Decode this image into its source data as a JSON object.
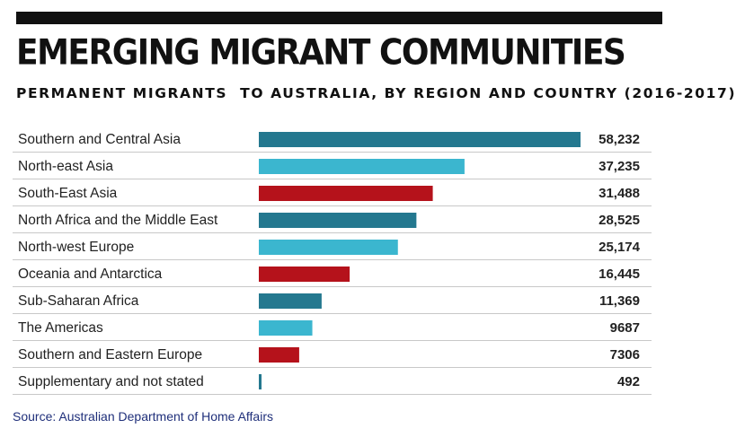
{
  "header": {
    "title": "EMERGING MIGRANT COMMUNITIES",
    "subtitle": "PERMANENT MIGRANTS  TO AUSTRALIA, BY REGION AND COUNTRY (2016-2017)"
  },
  "footer": {
    "source": "Source: Australian Department of Home Affairs"
  },
  "colors": {
    "dark_teal": "#24788f",
    "light_teal": "#3bb6cf",
    "red": "#b5121b",
    "rule": "#c8c8c8",
    "text": "#222222"
  },
  "chart_data": {
    "type": "bar",
    "orientation": "horizontal",
    "title": "EMERGING MIGRANT COMMUNITIES",
    "subtitle": "PERMANENT MIGRANTS  TO AUSTRALIA, BY REGION AND COUNTRY (2016-2017)",
    "xlabel": "",
    "ylabel": "",
    "grid": false,
    "legend": "none",
    "xlim": [
      0,
      58232
    ],
    "categories": [
      "Southern and Central Asia",
      "North-east Asia",
      "South-East Asia",
      "North Africa and the Middle East",
      "North-west Europe",
      "Oceania and Antarctica",
      "Sub-Saharan Africa",
      "The Americas",
      "Southern and Eastern Europe",
      "Supplementary and not stated"
    ],
    "values": [
      58232,
      37235,
      31488,
      28525,
      25174,
      16445,
      11369,
      9687,
      7306,
      492
    ],
    "value_labels": [
      "58,232",
      "37,235",
      "31,488",
      "28,525",
      "25,174",
      "16,445",
      "11,369",
      "9687",
      "7306",
      "492"
    ],
    "bar_colors": [
      "#24788f",
      "#3bb6cf",
      "#b5121b",
      "#24788f",
      "#3bb6cf",
      "#b5121b",
      "#24788f",
      "#3bb6cf",
      "#b5121b",
      "#24788f"
    ]
  }
}
